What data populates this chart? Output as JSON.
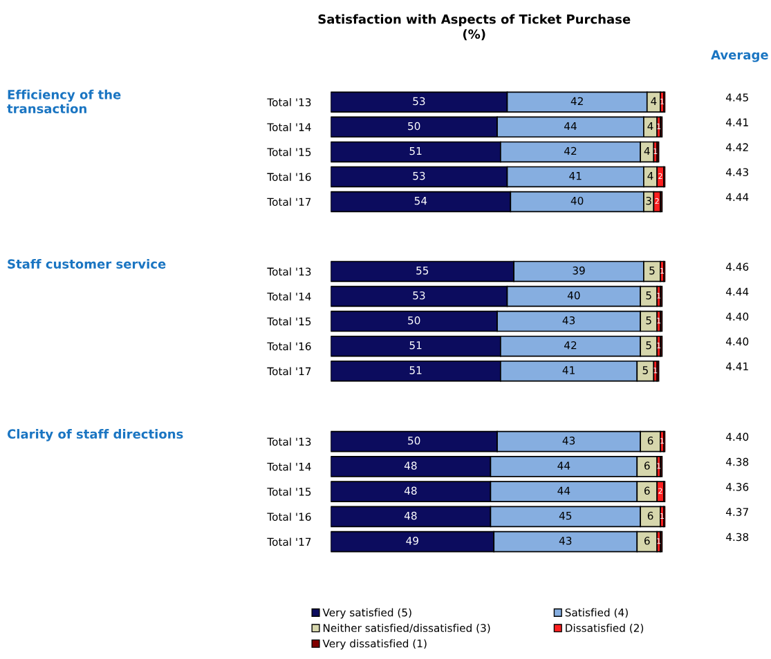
{
  "chart_data": [
    {
      "type": "bar",
      "orientation": "horizontal",
      "stacked": true,
      "title": "Satisfaction with Aspects of Ticket Purchase\n(%)",
      "ylabel": "Efficiency of the transaction",
      "y2label": "Average",
      "categories": [
        "Total '13",
        "Total '14",
        "Total '15",
        "Total '16",
        "Total '17"
      ],
      "annotations": [
        "4.45",
        "4.41",
        "4.42",
        "4.43",
        "4.44"
      ],
      "series": [
        {
          "color": "#0c0c5e",
          "values": [
            53,
            50,
            51,
            53,
            54
          ],
          "value_labels": [
            "53",
            "50",
            "51",
            "53",
            "54"
          ]
        },
        {
          "color": "#86aee0",
          "values": [
            42,
            44,
            42,
            41,
            40
          ],
          "value_labels": [
            "42",
            "44",
            "42",
            "41",
            "40"
          ]
        },
        {
          "color": "#d6d6ac",
          "values": [
            4,
            4,
            4,
            4,
            3
          ],
          "value_labels": [
            "4",
            "4",
            "4",
            "4",
            "3"
          ]
        },
        {
          "color": "#ff2020",
          "values": [
            1,
            1,
            1,
            2,
            2
          ],
          "value_labels": [
            "1",
            "1",
            "1",
            "2",
            "2"
          ]
        },
        {
          "color": "#800000",
          "values": [
            0.5,
            0.5,
            0.5,
            0.5,
            0.5
          ],
          "value_labels": [
            null,
            null,
            null,
            null,
            null
          ]
        }
      ]
    },
    {
      "type": "bar",
      "orientation": "horizontal",
      "stacked": true,
      "ylabel": "Staff customer service",
      "categories": [
        "Total '13",
        "Total '14",
        "Total '15",
        "Total '16",
        "Total '17"
      ],
      "annotations": [
        "4.46",
        "4.44",
        "4.40",
        "4.40",
        "4.41"
      ],
      "series": [
        {
          "color": "#0c0c5e",
          "values": [
            55,
            53,
            50,
            51,
            51
          ],
          "value_labels": [
            "55",
            "53",
            "50",
            "51",
            "51"
          ]
        },
        {
          "color": "#86aee0",
          "values": [
            39,
            40,
            43,
            42,
            41
          ],
          "value_labels": [
            "39",
            "40",
            "43",
            "42",
            "41"
          ]
        },
        {
          "color": "#d6d6ac",
          "values": [
            5,
            5,
            5,
            5,
            5
          ],
          "value_labels": [
            "5",
            "5",
            "5",
            "5",
            "5"
          ]
        },
        {
          "color": "#ff2020",
          "values": [
            1,
            1,
            1,
            1,
            1
          ],
          "value_labels": [
            "1",
            "1",
            "1",
            "1",
            "1"
          ]
        },
        {
          "color": "#800000",
          "values": [
            0.5,
            0.5,
            0.5,
            0.5,
            0.5
          ],
          "value_labels": [
            null,
            null,
            null,
            null,
            null
          ]
        }
      ]
    },
    {
      "type": "bar",
      "orientation": "horizontal",
      "stacked": true,
      "ylabel": "Clarity of staff directions",
      "categories": [
        "Total '13",
        "Total '14",
        "Total '15",
        "Total '16",
        "Total '17"
      ],
      "legend": "bottom",
      "annotations": [
        "4.40",
        "4.38",
        "4.36",
        "4.37",
        "4.38"
      ],
      "series": [
        {
          "name": "Very satisfied (5)",
          "color": "#0c0c5e",
          "values": [
            50,
            48,
            48,
            48,
            49
          ],
          "value_labels": [
            "50",
            "48",
            "48",
            "48",
            "49"
          ]
        },
        {
          "name": "Satisfied (4)",
          "color": "#86aee0",
          "values": [
            43,
            44,
            44,
            45,
            43
          ],
          "value_labels": [
            "43",
            "44",
            "44",
            "45",
            "43"
          ]
        },
        {
          "name": "Neither satisfied/dissatisfied (3)",
          "color": "#d6d6ac",
          "values": [
            6,
            6,
            6,
            6,
            6
          ],
          "value_labels": [
            "6",
            "6",
            "6",
            "6",
            "6"
          ]
        },
        {
          "name": "Dissatisfied (2)",
          "color": "#ff2020",
          "values": [
            1,
            1,
            2,
            1,
            1
          ],
          "value_labels": [
            "1",
            "1",
            "2",
            "1",
            "1"
          ]
        },
        {
          "name": "Very dissatisfied (1)",
          "color": "#800000",
          "values": [
            0.5,
            0.5,
            0.5,
            0.5,
            0.5
          ],
          "value_labels": [
            null,
            null,
            null,
            null,
            null
          ]
        }
      ]
    }
  ]
}
